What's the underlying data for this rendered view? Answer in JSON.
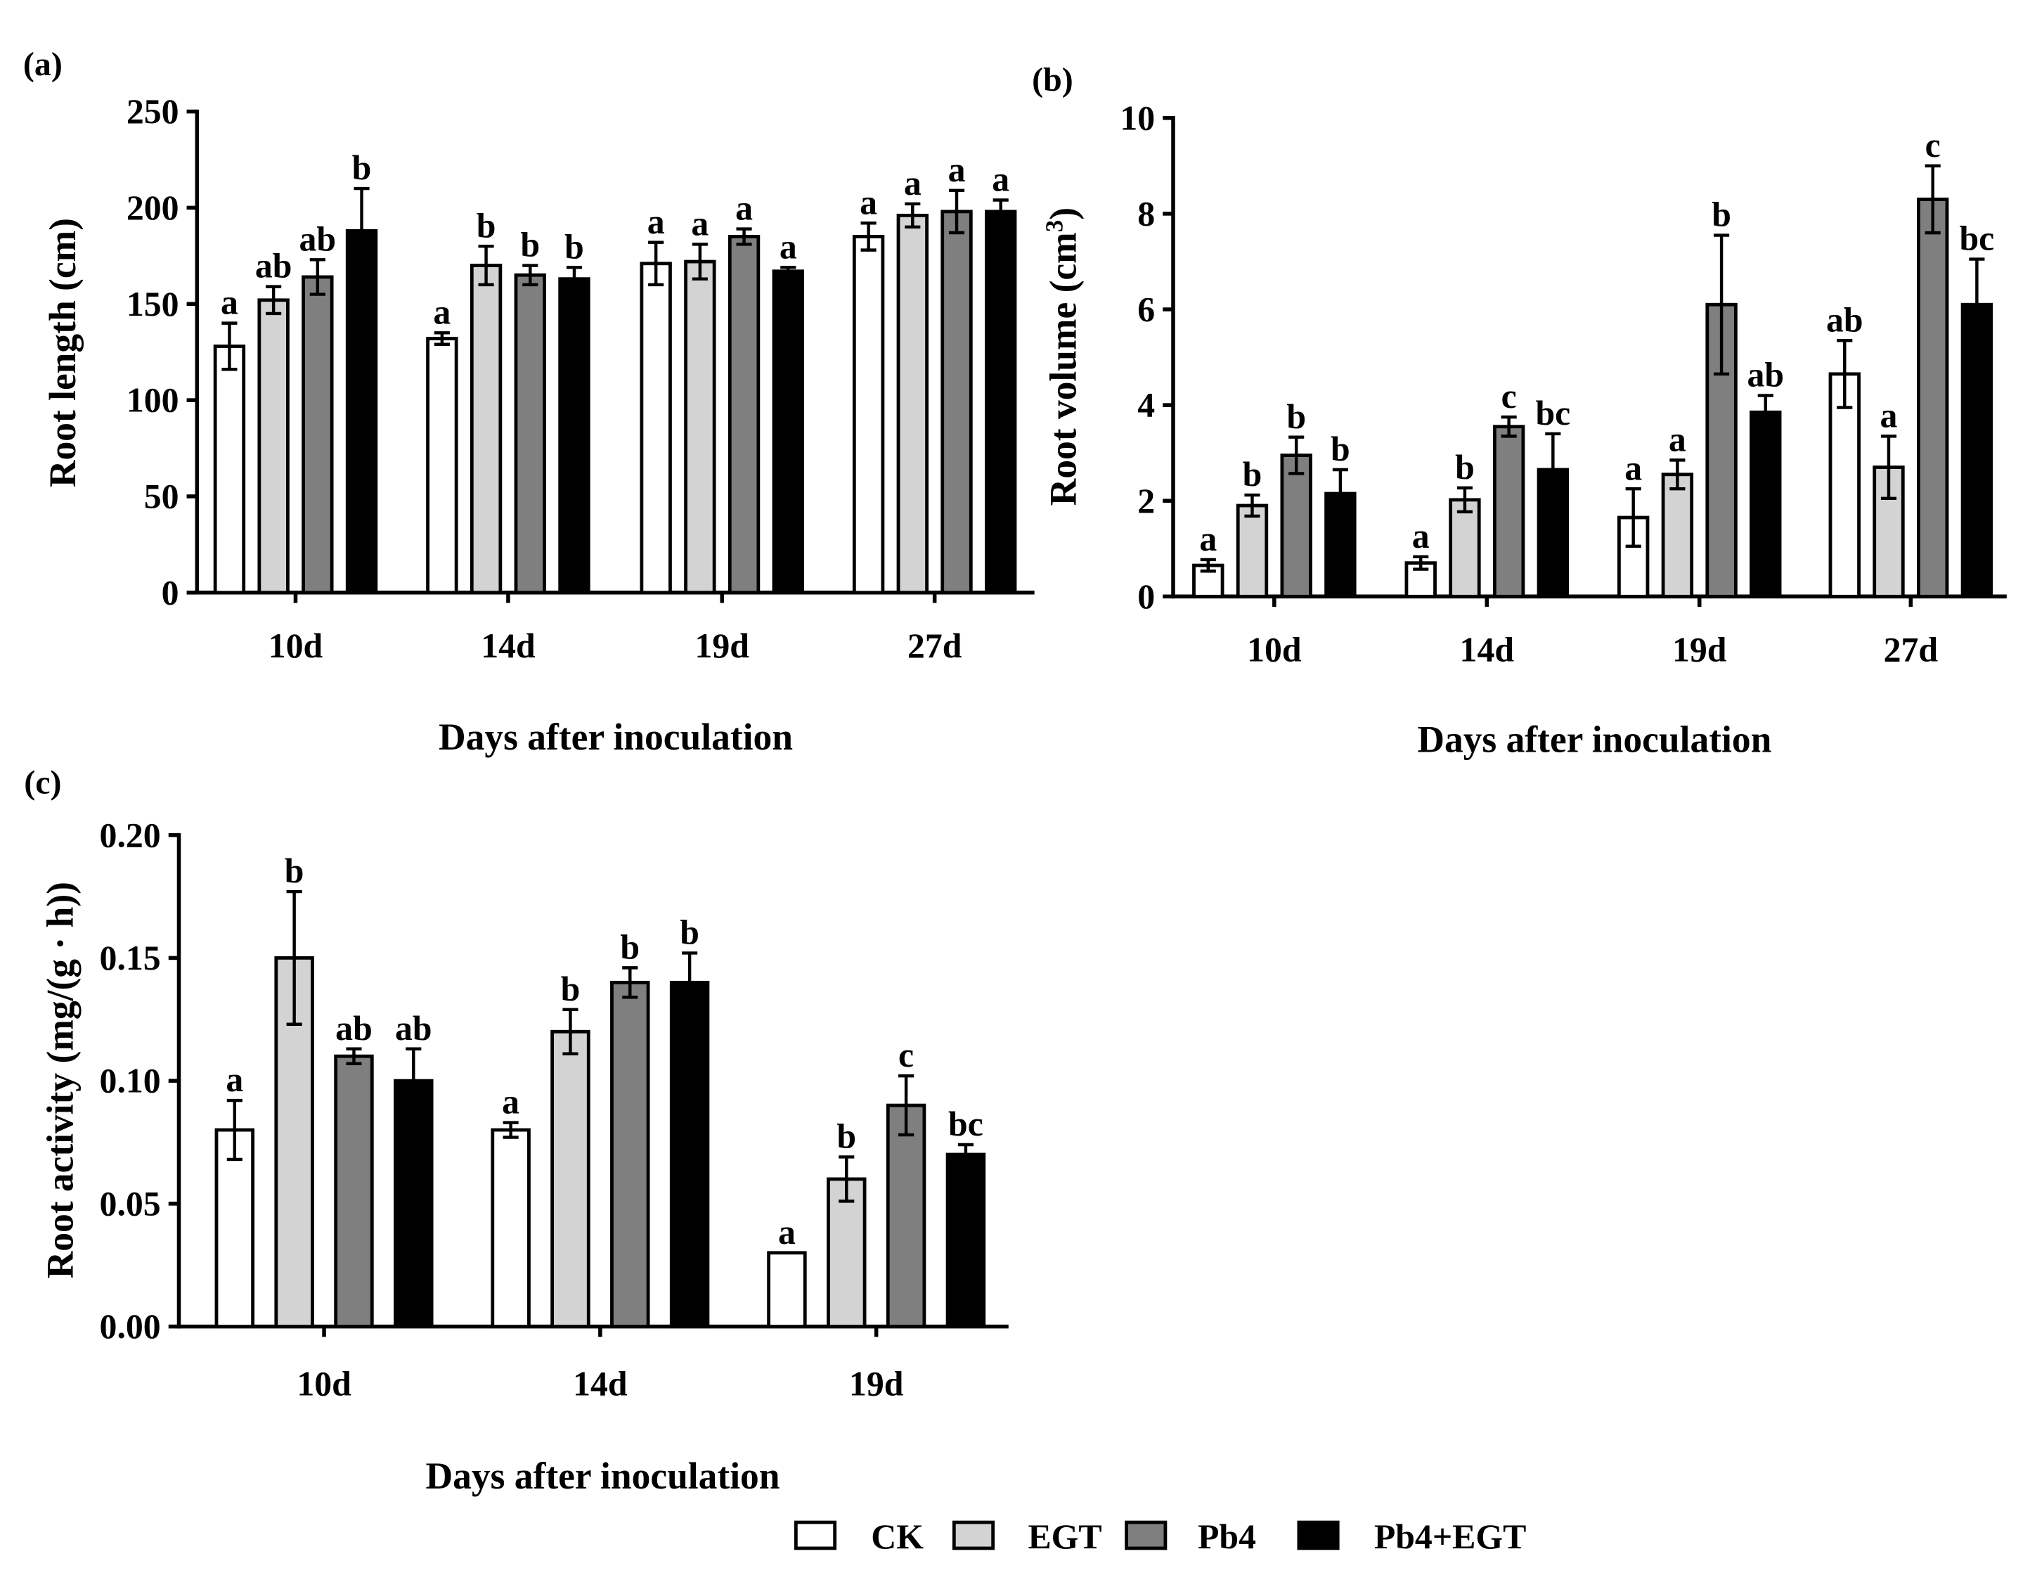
{
  "colors": {
    "CK": "#ffffff",
    "EGT": "#d3d3d3",
    "Pb4": "#7f7f7f",
    "Pb4+EGT": "#000000",
    "axis": "#000000"
  },
  "legend": {
    "placement": "bottom-right",
    "items": [
      {
        "label": "CK",
        "color": "#ffffff"
      },
      {
        "label": "EGT",
        "color": "#d3d3d3"
      },
      {
        "label": "Pb4",
        "color": "#7f7f7f"
      },
      {
        "label": "Pb4+EGT",
        "color": "#000000"
      }
    ]
  },
  "chart_data": [
    {
      "panel_label": "(a)",
      "type": "bar",
      "ylabel": "Root length (cm)",
      "ylabel_sup": "",
      "ylabel_end": "",
      "xlabel": "Days after inoculation",
      "categories": [
        "10d",
        "14d",
        "19d",
        "27d"
      ],
      "ylim": [
        0,
        250
      ],
      "yticks": [
        0,
        50,
        100,
        150,
        200,
        250
      ],
      "ytick_labels": [
        "0",
        "50",
        "100",
        "150",
        "200",
        "250"
      ],
      "series": [
        {
          "name": "CK",
          "values": [
            128,
            132,
            171,
            185
          ],
          "errors": [
            12,
            3,
            11,
            7
          ],
          "letters": [
            "a",
            "a",
            "a",
            "a"
          ]
        },
        {
          "name": "EGT",
          "values": [
            152,
            170,
            172,
            196
          ],
          "errors": [
            7,
            10,
            9,
            6
          ],
          "letters": [
            "ab",
            "b",
            "a",
            "a"
          ]
        },
        {
          "name": "Pb4",
          "values": [
            164,
            165,
            185,
            198
          ],
          "errors": [
            9,
            5,
            4,
            11
          ],
          "letters": [
            "ab",
            "b",
            "a",
            "a"
          ]
        },
        {
          "name": "Pb4+EGT",
          "values": [
            188,
            163,
            167,
            198
          ],
          "errors": [
            22,
            6,
            2,
            6
          ],
          "letters": [
            "b",
            "b",
            "a",
            "a"
          ]
        }
      ]
    },
    {
      "panel_label": "(b)",
      "type": "bar",
      "ylabel": "Root volume (cm",
      "ylabel_sup": "3",
      "ylabel_end": ")",
      "xlabel": "Days after inoculation",
      "categories": [
        "10d",
        "14d",
        "19d",
        "27d"
      ],
      "ylim": [
        0,
        10
      ],
      "yticks": [
        0,
        2,
        4,
        6,
        8,
        10
      ],
      "ytick_labels": [
        "0",
        "2",
        "4",
        "6",
        "8",
        "10"
      ],
      "series": [
        {
          "name": "CK",
          "values": [
            0.65,
            0.7,
            1.65,
            4.65
          ],
          "errors": [
            0.12,
            0.13,
            0.6,
            0.7
          ],
          "letters": [
            "a",
            "a",
            "a",
            "ab"
          ]
        },
        {
          "name": "EGT",
          "values": [
            1.9,
            2.02,
            2.55,
            2.7
          ],
          "errors": [
            0.22,
            0.25,
            0.3,
            0.65
          ],
          "letters": [
            "b",
            "b",
            "a",
            "a"
          ]
        },
        {
          "name": "Pb4",
          "values": [
            2.95,
            3.55,
            6.1,
            8.3
          ],
          "errors": [
            0.38,
            0.2,
            1.45,
            0.7
          ],
          "letters": [
            "b",
            "c",
            "b",
            "c"
          ]
        },
        {
          "name": "Pb4+EGT",
          "values": [
            2.15,
            2.65,
            3.85,
            6.1
          ],
          "errors": [
            0.5,
            0.75,
            0.35,
            0.95
          ],
          "letters": [
            "b",
            "bc",
            "ab",
            "bc"
          ]
        }
      ]
    },
    {
      "panel_label": "(c)",
      "type": "bar",
      "ylabel": "Root activity (mg/(g · h))",
      "ylabel_sup": "",
      "ylabel_end": "",
      "xlabel": "Days after inoculation",
      "categories": [
        "10d",
        "14d",
        "19d"
      ],
      "ylim": [
        0,
        0.2
      ],
      "yticks": [
        0,
        0.05,
        0.1,
        0.15,
        0.2
      ],
      "ytick_labels": [
        "0.00",
        "0.05",
        "0.10",
        "0.15",
        "0.20"
      ],
      "series": [
        {
          "name": "CK",
          "values": [
            0.08,
            0.08,
            0.03
          ],
          "errors": [
            0.012,
            0.003,
            0
          ],
          "letters": [
            "a",
            "a",
            "a"
          ]
        },
        {
          "name": "EGT",
          "values": [
            0.15,
            0.12,
            0.06
          ],
          "errors": [
            0.027,
            0.009,
            0.009
          ],
          "letters": [
            "b",
            "b",
            "b"
          ]
        },
        {
          "name": "Pb4",
          "values": [
            0.11,
            0.14,
            0.09
          ],
          "errors": [
            0.003,
            0.006,
            0.012
          ],
          "letters": [
            "ab",
            "b",
            "c"
          ]
        },
        {
          "name": "Pb4+EGT",
          "values": [
            0.1,
            0.14,
            0.07
          ],
          "errors": [
            0.013,
            0.012,
            0.004
          ],
          "letters": [
            "ab",
            "b",
            "bc"
          ]
        }
      ]
    }
  ]
}
